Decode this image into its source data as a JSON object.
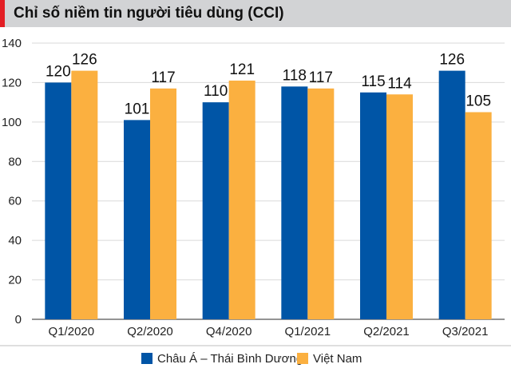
{
  "chart_data": {
    "type": "bar",
    "title": "Chỉ số niềm tin người tiêu dùng (CCI)",
    "categories": [
      "Q1/2020",
      "Q2/2020",
      "Q4/2020",
      "Q1/2021",
      "Q2/2021",
      "Q3/2021"
    ],
    "series": [
      {
        "name": "Châu Á – Thái Bình Dương",
        "color": "#0055a6",
        "values": [
          120,
          101,
          110,
          118,
          115,
          126
        ]
      },
      {
        "name": "Việt Nam",
        "color": "#fbb040",
        "values": [
          126,
          117,
          121,
          117,
          114,
          105
        ]
      }
    ],
    "yticks": [
      0,
      20,
      40,
      60,
      80,
      100,
      120,
      140
    ],
    "ylim": [
      0,
      140
    ],
    "grid": true,
    "legend": "bottom",
    "accent_color": "#e31e24"
  }
}
